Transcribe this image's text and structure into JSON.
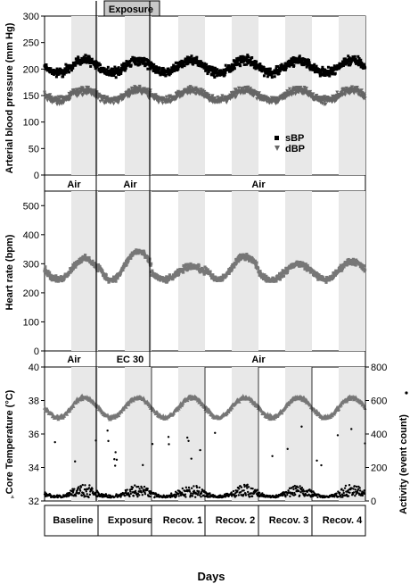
{
  "chart_data": [
    {
      "type": "scatter",
      "panel": "blood-pressure",
      "ylabel": "Arterial blood pressure (mm Hg)",
      "yticks": [
        "0",
        "50",
        "100",
        "150",
        "200",
        "250",
        "300"
      ],
      "ylim": [
        0,
        300
      ],
      "xlim_days": [
        0,
        6
      ],
      "exposure_label": "Exposure",
      "legend": {
        "placement": "middle-right",
        "items": [
          "sBP",
          "dBP"
        ]
      },
      "series": [
        {
          "name": "sBP",
          "marker": "square",
          "color": "#000000",
          "mean": 205,
          "amplitude": 12,
          "noise": 22
        },
        {
          "name": "dBP",
          "marker": "triangle",
          "color": "#666666",
          "mean": 150,
          "amplitude": 10,
          "noise": 18
        }
      ],
      "condition_labels": [
        "Air",
        "Air",
        "Air"
      ]
    },
    {
      "type": "scatter",
      "panel": "heart-rate",
      "ylabel": "Heart rate (bpm)",
      "yticks": [
        "0",
        "100",
        "200",
        "300",
        "400",
        "500"
      ],
      "ylim": [
        0,
        550
      ],
      "series": [
        {
          "name": "HR",
          "marker": "square",
          "color": "#777777",
          "night_mean": 295,
          "day_mean": 245,
          "noise": 25,
          "peaks": [
            330,
            360,
            300,
            340,
            310,
            320
          ]
        }
      ],
      "condition_labels": [
        "Air",
        "EC 30",
        "Air"
      ]
    },
    {
      "type": "scatter",
      "panel": "temperature-activity",
      "ylabel_left": "Core Temperature (°C)",
      "ylabel_right": "Activity (event count)",
      "yticks_left": [
        "32",
        "34",
        "36",
        "38",
        "40"
      ],
      "ylim_left": [
        32,
        40
      ],
      "yticks_right": [
        "0",
        "200",
        "400",
        "600",
        "800"
      ],
      "ylim_right": [
        0,
        800
      ],
      "series": [
        {
          "name": "Core Temperature",
          "axis": "left",
          "marker": "triangle",
          "color": "#777777",
          "day_mean": 37.0,
          "night_mean": 38.2
        },
        {
          "name": "Activity",
          "axis": "right",
          "marker": "dot",
          "color": "#000000",
          "day_mean": 20,
          "night_mean": 70
        }
      ],
      "day_labels": [
        "Baseline",
        "Exposure",
        "Recov. 1",
        "Recov. 2",
        "Recov. 3",
        "Recov. 4"
      ],
      "xlabel": "Days"
    }
  ]
}
